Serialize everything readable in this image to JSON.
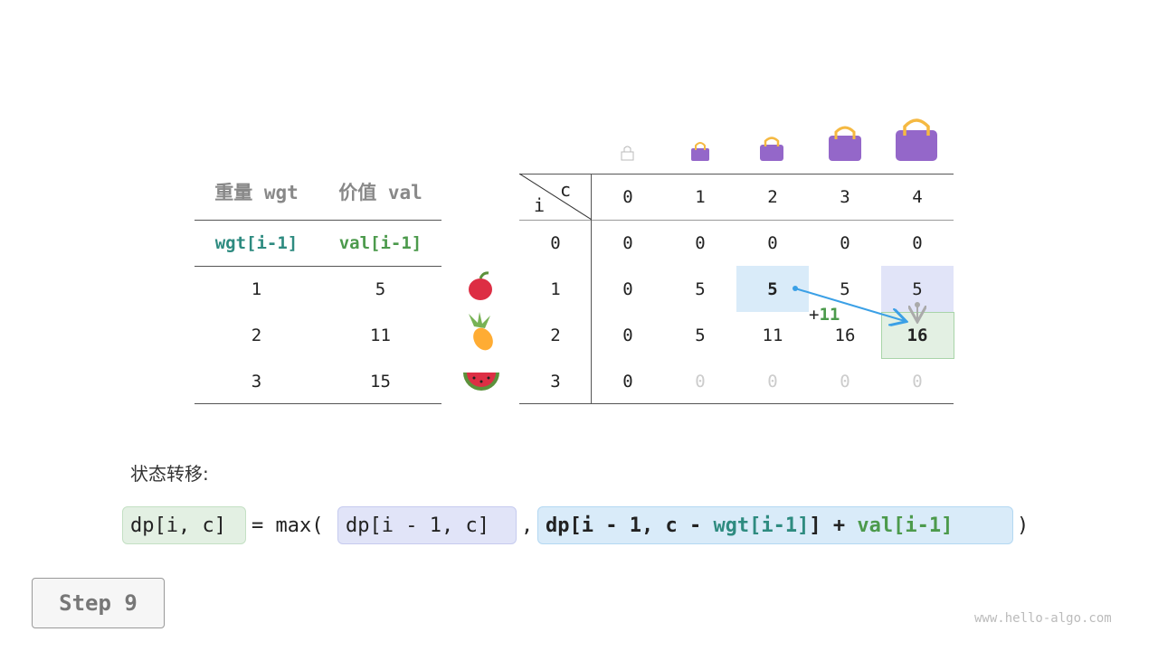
{
  "items_table": {
    "headers": [
      "重量 wgt",
      "价值 val"
    ],
    "subheaders": [
      "wgt[i-1]",
      "val[i-1]"
    ],
    "rows": [
      [
        "1",
        "5"
      ],
      [
        "2",
        "11"
      ],
      [
        "3",
        "15"
      ]
    ],
    "item_icons": [
      "apple-icon",
      "pineapple-icon",
      "watermelon-icon"
    ]
  },
  "dp_table": {
    "corner_row_label": "i",
    "corner_col_label": "c",
    "col_headers": [
      "0",
      "1",
      "2",
      "3",
      "4"
    ],
    "row_headers": [
      "0",
      "1",
      "2",
      "3"
    ],
    "cells": [
      [
        "0",
        "0",
        "0",
        "0",
        "0"
      ],
      [
        "0",
        "5",
        "5",
        "5",
        "5"
      ],
      [
        "0",
        "5",
        "11",
        "16",
        "16"
      ],
      [
        "0",
        "0",
        "0",
        "0",
        "0"
      ]
    ],
    "capacity_icons": [
      "empty-bag-icon",
      "bag-icon",
      "bag-icon",
      "bag-icon",
      "bag-icon"
    ],
    "annotation": "+11",
    "colors": {
      "blue_highlight": "#d9ebf9",
      "purple_highlight": "#e1e4f8",
      "green_highlight": "#e3f0e3",
      "arrow": "#3ba0e6",
      "bag": "#9467c9",
      "handle": "#f5b942"
    }
  },
  "transition": {
    "label": "状态转移:",
    "lhs": "dp[i, c]",
    "eq": "= max(",
    "opt1": "dp[i - 1, c]",
    "comma": ",",
    "opt2_prefix": "dp[i - 1, c - ",
    "opt2_wgt": "wgt[i-1]",
    "opt2_mid": "] + ",
    "opt2_val": "val[i-1]",
    "close": ")"
  },
  "step_button": "Step 9",
  "watermark": "www.hello-algo.com"
}
